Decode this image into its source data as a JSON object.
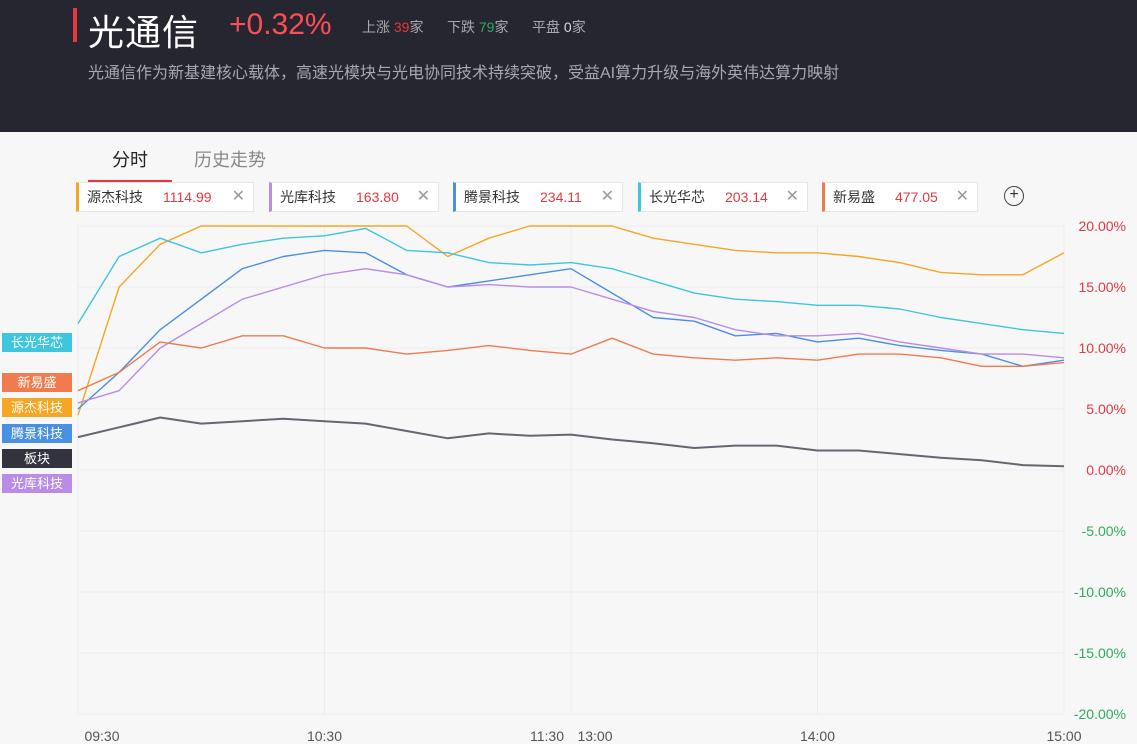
{
  "header": {
    "title": "光通信",
    "change": "+0.32%",
    "up_label": "上涨",
    "up_count": "39",
    "up_unit": "家",
    "down_label": "下跌",
    "down_count": "79",
    "down_unit": "家",
    "flat_label": "平盘",
    "flat_count": "0",
    "flat_unit": "家",
    "description": "光通信作为新基建核心载体，高速光模块与光电协同技术持续突破，受益AI算力升级与海外英伟达算力映射"
  },
  "tabs": [
    {
      "label": "分时",
      "active": true
    },
    {
      "label": "历史走势",
      "active": false
    }
  ],
  "chips": [
    {
      "name": "源杰科技",
      "value": "1114.99",
      "color": "#f5a623"
    },
    {
      "name": "光库科技",
      "value": "163.80",
      "color": "#b98ce8"
    },
    {
      "name": "腾景科技",
      "value": "234.11",
      "color": "#4a90e2"
    },
    {
      "name": "长光华芯",
      "value": "203.14",
      "color": "#3ec6de"
    },
    {
      "name": "新易盛",
      "value": "477.05",
      "color": "#f07b4e"
    }
  ],
  "add_icon": "plus-circle-icon",
  "close_icon": "close-icon",
  "side_labels": [
    {
      "label": "长光华芯",
      "color": "#3ec6de"
    },
    {
      "label": "新易盛",
      "color": "#f07b4e"
    },
    {
      "label": "源杰科技",
      "color": "#f5a623"
    },
    {
      "label": "腾景科技",
      "color": "#4a90e2"
    },
    {
      "label": "板块",
      "color": "#333340"
    },
    {
      "label": "光库科技",
      "color": "#b98ce8"
    }
  ],
  "chart_data": {
    "type": "line",
    "x_ticks": [
      "09:30",
      "10:30",
      "11:30",
      "13:00",
      "14:00",
      "15:00"
    ],
    "y_ticks": [
      "20.00%",
      "15.00%",
      "10.00%",
      "5.00%",
      "0.00%",
      "-5.00%",
      "-10.00%",
      "-15.00%",
      "-20.00%"
    ],
    "ylim": [
      -20,
      20
    ],
    "grid": true,
    "x": [
      0,
      10,
      20,
      30,
      40,
      50,
      60,
      70,
      80,
      90,
      100,
      110,
      120,
      130,
      140,
      150,
      160,
      170,
      180,
      190,
      200,
      210,
      220,
      230,
      240
    ],
    "series": [
      {
        "name": "源杰科技",
        "color": "#f5a623",
        "values": [
          4.5,
          15.0,
          18.5,
          20.0,
          20.0,
          20.0,
          20.0,
          20.0,
          20.0,
          17.5,
          19.0,
          20.0,
          20.0,
          20.0,
          19.0,
          18.5,
          18.0,
          17.8,
          17.8,
          17.5,
          17.0,
          16.2,
          16.0,
          16.0,
          17.8
        ]
      },
      {
        "name": "长光华芯",
        "color": "#3ec6de",
        "values": [
          12.0,
          17.5,
          19.0,
          17.8,
          18.5,
          19.0,
          19.2,
          19.8,
          18.0,
          17.8,
          17.0,
          16.8,
          17.0,
          16.5,
          15.5,
          14.5,
          14.0,
          13.8,
          13.5,
          13.5,
          13.2,
          12.5,
          12.0,
          11.5,
          11.2
        ]
      },
      {
        "name": "腾景科技",
        "color": "#4a90e2",
        "values": [
          5.0,
          8.0,
          11.5,
          14.0,
          16.5,
          17.5,
          18.0,
          17.8,
          16.0,
          15.0,
          15.5,
          16.0,
          16.5,
          14.5,
          12.5,
          12.2,
          11.0,
          11.2,
          10.5,
          10.8,
          10.2,
          9.8,
          9.5,
          8.5,
          9.0
        ]
      },
      {
        "name": "光库科技",
        "color": "#b98ce8",
        "values": [
          5.5,
          6.5,
          10.0,
          12.0,
          14.0,
          15.0,
          16.0,
          16.5,
          16.0,
          15.0,
          15.2,
          15.0,
          15.0,
          14.0,
          13.0,
          12.5,
          11.5,
          11.0,
          11.0,
          11.2,
          10.5,
          10.0,
          9.5,
          9.5,
          9.2
        ]
      },
      {
        "name": "新易盛",
        "color": "#f07b4e",
        "values": [
          6.5,
          8.0,
          10.5,
          10.0,
          11.0,
          11.0,
          10.0,
          10.0,
          9.5,
          9.8,
          10.2,
          9.8,
          9.5,
          10.8,
          9.5,
          9.2,
          9.0,
          9.2,
          9.0,
          9.5,
          9.5,
          9.2,
          8.5,
          8.5,
          8.8
        ]
      },
      {
        "name": "板块",
        "color": "#666670",
        "values": [
          2.7,
          3.5,
          4.3,
          3.8,
          4.0,
          4.2,
          4.0,
          3.8,
          3.2,
          2.6,
          3.0,
          2.8,
          2.9,
          2.5,
          2.2,
          1.8,
          2.0,
          2.0,
          1.6,
          1.6,
          1.3,
          1.0,
          0.8,
          0.4,
          0.3
        ]
      }
    ]
  }
}
